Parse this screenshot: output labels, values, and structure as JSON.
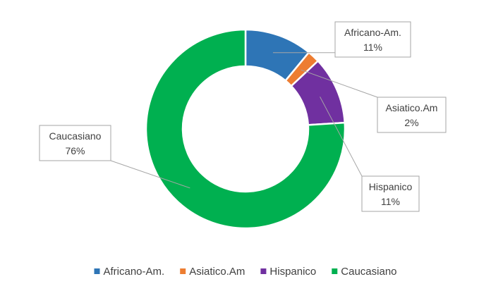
{
  "chart_data": {
    "type": "pie",
    "donut": true,
    "title": "",
    "legend_position": "bottom",
    "slices": [
      {
        "label": "Africano-Am.",
        "value": 11,
        "value_label": "11%",
        "color": "#2e75b6"
      },
      {
        "label": "Asiatico.Am",
        "value": 2,
        "value_label": "2%",
        "color": "#ed7d31"
      },
      {
        "label": "Hispanico",
        "value": 11,
        "value_label": "11%",
        "color": "#7030a0"
      },
      {
        "label": "Caucasiano",
        "value": 76,
        "value_label": "76%",
        "color": "#00b050"
      }
    ]
  }
}
